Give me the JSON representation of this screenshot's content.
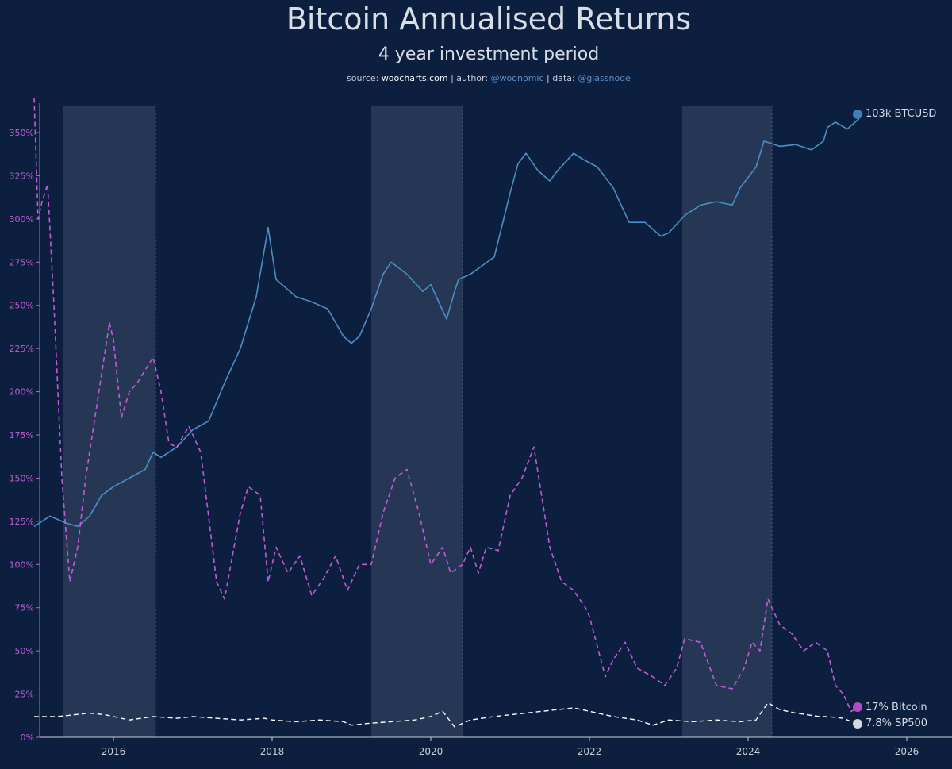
{
  "header": {
    "title": "Bitcoin Annualised Returns",
    "subtitle": "4 year investment period",
    "source_label": "source:",
    "source_value": "woocharts.com",
    "author_label": "| author:",
    "author_value": "@woonomic",
    "data_label": "| data:",
    "data_value": "@glassnode"
  },
  "chart_data": {
    "type": "line",
    "title": "Bitcoin Annualised Returns",
    "subtitle": "4 year investment period",
    "x_range": [
      2015.0,
      2026.6
    ],
    "y_range": [
      0,
      370
    ],
    "y_ticks": [
      0,
      25,
      50,
      75,
      100,
      125,
      150,
      175,
      200,
      225,
      250,
      275,
      300,
      325,
      350
    ],
    "y_tick_labels": [
      "0%",
      "25%",
      "50%",
      "75%",
      "100%",
      "125%",
      "150%",
      "175%",
      "200%",
      "225%",
      "250%",
      "275%",
      "300%",
      "325%",
      "350%"
    ],
    "x_ticks": [
      2016,
      2018,
      2020,
      2022,
      2024,
      2026
    ],
    "x_tick_labels": [
      "2016",
      "2018",
      "2020",
      "2022",
      "2024",
      "2026"
    ],
    "grid": false,
    "shaded_periods": [
      [
        2015.37,
        2016.53
      ],
      [
        2019.25,
        2020.4
      ],
      [
        2023.17,
        2024.3
      ]
    ],
    "colors": {
      "background": "#0c1f3f",
      "btcusd": "#4b8fc4",
      "bitcoin": "#c35bd6",
      "sp500": "#ffffff",
      "axis": "#c35bd6",
      "shade": "#2b3c5a"
    },
    "series": [
      {
        "name": "BTCUSD",
        "label": "103k BTCUSD",
        "style": "solid",
        "x": [
          2015.0,
          2015.2,
          2015.4,
          2015.55,
          2015.7,
          2015.85,
          2016.0,
          2016.2,
          2016.4,
          2016.5,
          2016.6,
          2016.8,
          2017.0,
          2017.2,
          2017.4,
          2017.6,
          2017.8,
          2017.95,
          2018.05,
          2018.3,
          2018.5,
          2018.7,
          2018.9,
          2019.0,
          2019.1,
          2019.25,
          2019.4,
          2019.5,
          2019.7,
          2019.9,
          2020.0,
          2020.2,
          2020.3,
          2020.35,
          2020.5,
          2020.8,
          2021.0,
          2021.1,
          2021.2,
          2021.35,
          2021.5,
          2021.6,
          2021.8,
          2021.9,
          2022.1,
          2022.3,
          2022.5,
          2022.7,
          2022.9,
          2023.0,
          2023.2,
          2023.4,
          2023.6,
          2023.8,
          2023.9,
          2024.1,
          2024.2,
          2024.4,
          2024.6,
          2024.8,
          2024.95,
          2025.0,
          2025.1,
          2025.25,
          2025.35,
          2025.4
        ],
        "y": [
          122,
          128,
          124,
          122,
          128,
          140,
          145,
          150,
          155,
          165,
          162,
          168,
          178,
          183,
          205,
          225,
          255,
          295,
          265,
          255,
          252,
          248,
          232,
          228,
          232,
          248,
          268,
          275,
          268,
          258,
          262,
          242,
          258,
          265,
          268,
          278,
          315,
          332,
          338,
          328,
          322,
          328,
          338,
          335,
          330,
          318,
          298,
          298,
          290,
          292,
          302,
          308,
          310,
          308,
          318,
          330,
          345,
          342,
          343,
          340,
          345,
          353,
          356,
          352,
          356,
          358
        ]
      },
      {
        "name": "Bitcoin",
        "label": "17% Bitcoin",
        "style": "dashed",
        "x": [
          2015.0,
          2015.05,
          2015.1,
          2015.17,
          2015.25,
          2015.35,
          2015.45,
          2015.55,
          2015.65,
          2015.8,
          2015.95,
          2016.0,
          2016.1,
          2016.2,
          2016.3,
          2016.5,
          2016.6,
          2016.7,
          2016.8,
          2016.95,
          2017.1,
          2017.3,
          2017.4,
          2017.6,
          2017.7,
          2017.85,
          2017.95,
          2018.05,
          2018.2,
          2018.35,
          2018.5,
          2018.65,
          2018.8,
          2018.95,
          2019.1,
          2019.25,
          2019.4,
          2019.55,
          2019.7,
          2019.85,
          2020.0,
          2020.15,
          2020.25,
          2020.4,
          2020.5,
          2020.6,
          2020.7,
          2020.85,
          2021.0,
          2021.15,
          2021.3,
          2021.5,
          2021.65,
          2021.8,
          2021.95,
          2022.0,
          2022.2,
          2022.3,
          2022.45,
          2022.6,
          2022.8,
          2022.95,
          2023.1,
          2023.2,
          2023.4,
          2023.6,
          2023.8,
          2023.95,
          2024.05,
          2024.15,
          2024.25,
          2024.4,
          2024.55,
          2024.7,
          2024.85,
          2025.0,
          2025.1,
          2025.2,
          2025.3,
          2025.4
        ],
        "y": [
          370,
          300,
          310,
          320,
          250,
          150,
          90,
          110,
          150,
          195,
          240,
          230,
          185,
          200,
          205,
          220,
          200,
          170,
          168,
          180,
          165,
          90,
          80,
          130,
          145,
          140,
          90,
          110,
          95,
          105,
          82,
          92,
          105,
          85,
          100,
          100,
          130,
          150,
          155,
          130,
          100,
          110,
          95,
          100,
          110,
          95,
          110,
          108,
          140,
          150,
          168,
          110,
          90,
          85,
          75,
          70,
          35,
          45,
          55,
          40,
          35,
          30,
          40,
          57,
          55,
          30,
          28,
          40,
          55,
          50,
          80,
          65,
          60,
          50,
          55,
          50,
          30,
          25,
          15,
          17
        ]
      },
      {
        "name": "SP500",
        "label": "7.8% SP500",
        "style": "dashed",
        "x": [
          2015.0,
          2015.3,
          2015.5,
          2015.7,
          2015.9,
          2016.0,
          2016.2,
          2016.5,
          2016.8,
          2017.0,
          2017.3,
          2017.6,
          2017.9,
          2018.0,
          2018.3,
          2018.6,
          2018.9,
          2019.0,
          2019.2,
          2019.5,
          2019.8,
          2020.0,
          2020.15,
          2020.3,
          2020.5,
          2020.8,
          2021.0,
          2021.4,
          2021.8,
          2022.0,
          2022.3,
          2022.6,
          2022.8,
          2023.0,
          2023.3,
          2023.6,
          2023.9,
          2024.1,
          2024.25,
          2024.4,
          2024.6,
          2024.9,
          2025.0,
          2025.2,
          2025.3,
          2025.4
        ],
        "y": [
          12,
          12,
          13,
          14,
          13,
          12,
          10,
          12,
          11,
          12,
          11,
          10,
          11,
          10,
          9,
          10,
          9,
          7,
          8,
          9,
          10,
          12,
          15,
          6,
          10,
          12,
          13,
          15,
          17,
          15,
          12,
          10,
          7,
          10,
          9,
          10,
          9,
          10,
          20,
          16,
          14,
          12,
          12,
          11,
          9,
          7.8
        ]
      }
    ],
    "end_labels": [
      "103k BTCUSD",
      "17% Bitcoin",
      "7.8% SP500"
    ]
  }
}
